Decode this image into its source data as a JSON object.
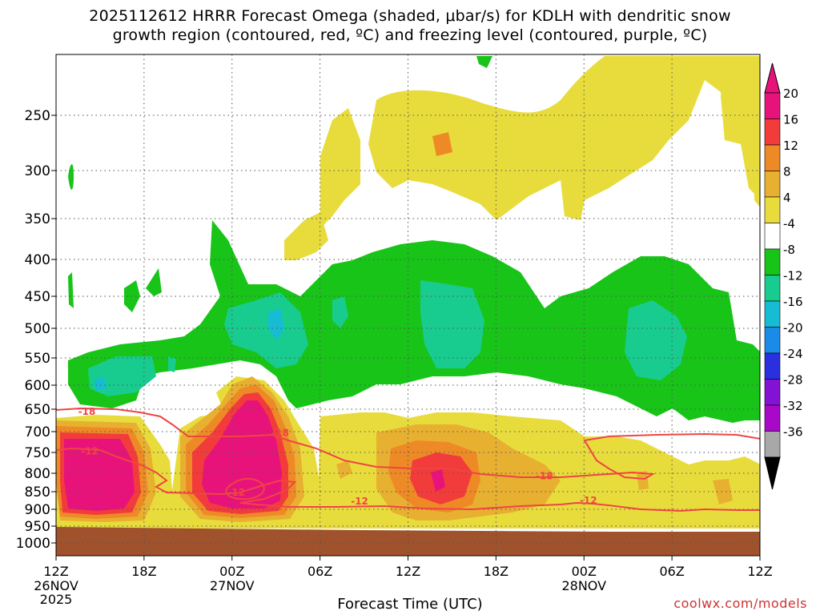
{
  "chart_data": {
    "type": "heatmap",
    "title_line1": "2025112612 HRRR Forecast Omega (shaded, μbar/s) for KDLH with dendritic snow",
    "title_line2": "growth region (contoured, red, ºC) and freezing level (contoured, purple, ºC)",
    "xlabel": "Forecast Time (UTC)",
    "credit": "coolwx.com/models",
    "x_ticks": [
      {
        "hour": 0,
        "label": "12Z",
        "sub1": "26NOV",
        "sub2": "2025"
      },
      {
        "hour": 6,
        "label": "18Z"
      },
      {
        "hour": 12,
        "label": "00Z",
        "sub1": "27NOV"
      },
      {
        "hour": 18,
        "label": "06Z"
      },
      {
        "hour": 24,
        "label": "12Z"
      },
      {
        "hour": 30,
        "label": "18Z"
      },
      {
        "hour": 36,
        "label": "00Z",
        "sub1": "28NOV"
      },
      {
        "hour": 42,
        "label": "06Z"
      },
      {
        "hour": 48,
        "label": "12Z"
      }
    ],
    "x_range_hours": [
      0,
      48
    ],
    "y_ticks_hpa": [
      250,
      300,
      350,
      400,
      450,
      500,
      550,
      600,
      650,
      700,
      750,
      800,
      850,
      900,
      950,
      1000
    ],
    "y_range_hpa": [
      200,
      1020
    ],
    "colorbar": {
      "labels": [
        "20",
        "16",
        "12",
        "8",
        "4",
        "-4",
        "-8",
        "-12",
        "-16",
        "-20",
        "-24",
        "-28",
        "-32",
        "-36"
      ],
      "colors": [
        "#e8137a",
        "#f23c3c",
        "#ee8a26",
        "#e8b030",
        "#e8dc3c",
        "#ffffff",
        "#18c418",
        "#18cc90",
        "#16bcd4",
        "#1a8ce8",
        "#2a30e0",
        "#8412d4",
        "#a808c8",
        "#a8a8a8"
      ],
      "top_arrow_color": "#e8137a",
      "bottom_arrow_color": "#000000"
    },
    "contour_labels": [
      "-18",
      "-12",
      "-18",
      "-12",
      "-12",
      "-18",
      "-12",
      "-12",
      "-12"
    ],
    "terrain_color": "#a0522d"
  }
}
